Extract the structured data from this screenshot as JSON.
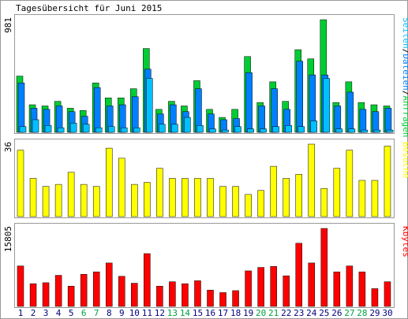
{
  "title": "Tagesübersicht für Juni 2015",
  "colors": {
    "page_bg": "#ffffff",
    "plot_bg": "#ffffff",
    "border": "#999999",
    "hits": "#00cc33",
    "files": "#0080ff",
    "pages": "#00c0ff",
    "visits": "#ffff00",
    "kbytes": "#ff0000",
    "weekend": "#00a040",
    "day_label": "#000080"
  },
  "chart_data": [
    {
      "type": "bar",
      "panel": "hits",
      "ymax_label": "981",
      "ylim": [
        0,
        981
      ],
      "categories": [
        "1",
        "2",
        "3",
        "4",
        "5",
        "6",
        "7",
        "8",
        "9",
        "10",
        "11",
        "12",
        "13",
        "14",
        "15",
        "16",
        "17",
        "18",
        "19",
        "20",
        "21",
        "22",
        "23",
        "24",
        "25",
        "26",
        "27",
        "28",
        "29",
        "30"
      ],
      "weekend_days": [
        "6",
        "7",
        "13",
        "14",
        "20",
        "21",
        "27",
        "28"
      ],
      "legend": [
        {
          "text": "Seiten",
          "color": "#00c0ff"
        },
        {
          "text": "/",
          "color": "#000000"
        },
        {
          "text": "Dateien",
          "color": "#0080ff"
        },
        {
          "text": "/",
          "color": "#000000"
        },
        {
          "text": "Anfragen",
          "color": "#00cc33"
        }
      ],
      "series": [
        {
          "name": "Anfragen",
          "values": [
            490,
            240,
            230,
            270,
            210,
            190,
            430,
            300,
            300,
            380,
            730,
            200,
            270,
            230,
            450,
            200,
            130,
            200,
            660,
            260,
            440,
            270,
            720,
            640,
            981,
            260,
            440,
            260,
            240,
            230
          ]
        },
        {
          "name": "Dateien",
          "values": [
            430,
            210,
            200,
            230,
            180,
            140,
            390,
            230,
            240,
            310,
            550,
            160,
            240,
            180,
            380,
            160,
            110,
            120,
            520,
            230,
            380,
            200,
            620,
            500,
            500,
            230,
            350,
            200,
            180,
            210
          ]
        },
        {
          "name": "Seiten",
          "values": [
            50,
            110,
            60,
            40,
            80,
            70,
            40,
            50,
            40,
            40,
            470,
            70,
            70,
            130,
            60,
            30,
            20,
            50,
            30,
            30,
            50,
            60,
            50,
            100,
            470,
            30,
            30,
            20,
            20,
            20
          ]
        }
      ]
    },
    {
      "type": "bar",
      "panel": "visits",
      "ymax_label": "36",
      "ylim": [
        0,
        36
      ],
      "categories": [
        "1",
        "2",
        "3",
        "4",
        "5",
        "6",
        "7",
        "8",
        "9",
        "10",
        "11",
        "12",
        "13",
        "14",
        "15",
        "16",
        "17",
        "18",
        "19",
        "20",
        "21",
        "22",
        "23",
        "24",
        "25",
        "26",
        "27",
        "28",
        "29",
        "30"
      ],
      "legend": [
        {
          "text": "Besuche",
          "color": "#ffff00"
        }
      ],
      "series": [
        {
          "name": "Besuche",
          "values": [
            33,
            19,
            15,
            16,
            22,
            16,
            15,
            34,
            29,
            16,
            17,
            24,
            19,
            19,
            19,
            19,
            15,
            15,
            11,
            13,
            25,
            19,
            21,
            36,
            14,
            24,
            33,
            18,
            18,
            35
          ]
        }
      ]
    },
    {
      "type": "bar",
      "panel": "kbytes",
      "ymax_label": "15805",
      "ylim": [
        0,
        15805
      ],
      "categories": [
        "1",
        "2",
        "3",
        "4",
        "5",
        "6",
        "7",
        "8",
        "9",
        "10",
        "11",
        "12",
        "13",
        "14",
        "15",
        "16",
        "17",
        "18",
        "19",
        "20",
        "21",
        "22",
        "23",
        "24",
        "25",
        "26",
        "27",
        "28",
        "29",
        "30"
      ],
      "legend": [
        {
          "text": "Kbytes",
          "color": "#ff0000"
        }
      ],
      "series": [
        {
          "name": "Kbytes",
          "values": [
            8200,
            4600,
            4800,
            6300,
            4100,
            6500,
            7000,
            8800,
            6100,
            4700,
            10700,
            4100,
            5000,
            4600,
            5200,
            3300,
            2800,
            3200,
            7200,
            7900,
            8100,
            6200,
            12800,
            8800,
            15805,
            7000,
            8200,
            7000,
            3600,
            5000
          ]
        }
      ]
    }
  ]
}
